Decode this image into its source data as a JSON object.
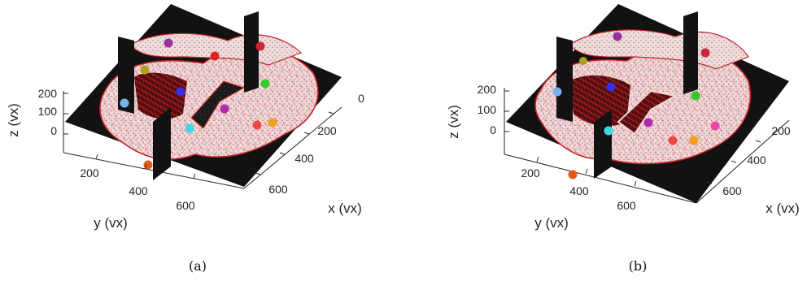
{
  "panels": [
    {
      "caption": "(a)",
      "x_axis": {
        "label": "x (vx)",
        "ticks": [
          "0",
          "200",
          "400",
          "600"
        ]
      },
      "y_axis": {
        "label": "y (vx)",
        "ticks": [
          "200",
          "400",
          "600"
        ]
      },
      "z_axis": {
        "label": "z (vx)",
        "ticks": [
          "200",
          "100",
          "0"
        ]
      },
      "landmark_colors": [
        "#9b2fa0",
        "#c82838",
        "#e02424",
        "#b0a020",
        "#2ecc2e",
        "#3a2ee6",
        "#7ab0e8",
        "#b02ab0",
        "#40d8e8",
        "#f04848",
        "#f0a020",
        "#e05a20"
      ]
    },
    {
      "caption": "(b)",
      "x_axis": {
        "label": "x (vx)",
        "ticks": [
          "200",
          "400",
          "600"
        ]
      },
      "y_axis": {
        "label": "y (vx)",
        "ticks": [
          "200",
          "400",
          "600"
        ]
      },
      "z_axis": {
        "label": "z (vx)",
        "ticks": [
          "200",
          "100",
          "0"
        ]
      },
      "landmark_colors": [
        "#9b2fa0",
        "#c82838",
        "#b0a020",
        "#3a2ee6",
        "#2ecc2e",
        "#7ab0e8",
        "#b02ab0",
        "#40d8e8",
        "#f04848",
        "#f0a020",
        "#e848a8",
        "#e05a20"
      ]
    }
  ]
}
